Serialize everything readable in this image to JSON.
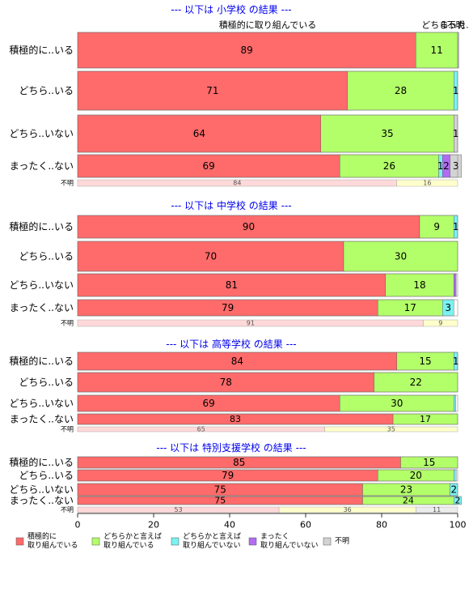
{
  "chart_data": {
    "type": "bar",
    "orientation": "horizontal",
    "stacked": true,
    "percent": true,
    "xlim": [
      0,
      100
    ],
    "xticks": [
      0,
      20,
      40,
      60,
      80,
      100
    ],
    "colors": [
      "#ff6a6a",
      "#b3ff6a",
      "#7af2f2",
      "#b26cf2",
      "#d3d3d3"
    ],
    "legend": {
      "placement": "bottom",
      "entries": [
        [
          "積極的に",
          "取り組んでいる"
        ],
        [
          "どちらかと言えば",
          "取り組んでいる"
        ],
        [
          "どちらかと言えば",
          "取り組んでいない"
        ],
        [
          "まったく",
          "取り組んでいない"
        ],
        [
          "不明"
        ]
      ]
    },
    "top_labels": [
      {
        "text": "積極的に取り組んでいる",
        "at": 0.5
      },
      {
        "text": "どちら...",
        "at": 0.95
      },
      {
        "text": "不明",
        "at": 0.995
      },
      {
        "text": "まった...",
        "at": 0.998
      }
    ],
    "panels": [
      {
        "title": "--- 以下は 小学校 の結果 ---",
        "rows": [
          {
            "label": "積極的に..いる",
            "values": [
              89,
              11,
              0,
              0,
              0.3
            ],
            "labels": [
              "89",
              "11",
              "",
              "",
              ""
            ]
          },
          {
            "label": "どちら..いる",
            "values": [
              71,
              28,
              1,
              0,
              0
            ],
            "labels": [
              "71",
              "28",
              "1",
              "",
              ""
            ]
          },
          {
            "label": "どちら..いない",
            "values": [
              64,
              35,
              0,
              0,
              1
            ],
            "labels": [
              "64",
              "35",
              "",
              "",
              "1"
            ]
          },
          {
            "label": "まったく..ない",
            "values": [
              69,
              26,
              1,
              2,
              3
            ],
            "labels": [
              "69",
              "26",
              "1",
              "2",
              "3"
            ]
          }
        ],
        "unknown": {
          "label": "不明",
          "values": [
            84,
            16
          ],
          "labels": [
            "84",
            "16"
          ]
        }
      },
      {
        "title": "--- 以下は 中学校 の結果 ---",
        "rows": [
          {
            "label": "積極的に..いる",
            "values": [
              90,
              9,
              1,
              0,
              0
            ],
            "labels": [
              "90",
              "9",
              "1",
              "",
              ""
            ]
          },
          {
            "label": "どちら..いる",
            "values": [
              70,
              30,
              0,
              0,
              0
            ],
            "labels": [
              "70",
              "30",
              "",
              "",
              ""
            ]
          },
          {
            "label": "どちら..いない",
            "values": [
              81,
              18,
              0,
              0.6,
              0
            ],
            "labels": [
              "81",
              "18",
              "",
              "",
              ""
            ]
          },
          {
            "label": "まったく..ない",
            "values": [
              79,
              17,
              3,
              0,
              0
            ],
            "labels": [
              "79",
              "17",
              "3",
              "",
              ""
            ]
          }
        ],
        "unknown": {
          "label": "不明",
          "values": [
            91,
            9
          ],
          "labels": [
            "91",
            "9"
          ]
        }
      },
      {
        "title": "--- 以下は 高等学校 の結果 ---",
        "rows": [
          {
            "label": "積極的に..いる",
            "values": [
              84,
              15,
              1,
              0,
              0
            ],
            "labels": [
              "84",
              "15",
              "1",
              "",
              ""
            ]
          },
          {
            "label": "どちら..いる",
            "values": [
              78,
              22,
              0,
              0,
              0
            ],
            "labels": [
              "78",
              "22",
              "",
              "",
              ""
            ]
          },
          {
            "label": "どちら..いない",
            "values": [
              69,
              30,
              0.5,
              0,
              0
            ],
            "labels": [
              "69",
              "30",
              "",
              "",
              ""
            ]
          },
          {
            "label": "まったく..ない",
            "values": [
              83,
              17,
              0,
              0,
              0
            ],
            "labels": [
              "83",
              "17",
              "",
              "",
              ""
            ]
          }
        ],
        "unknown": {
          "label": "不明",
          "values": [
            65,
            35
          ],
          "labels": [
            "65",
            "35"
          ]
        }
      },
      {
        "title": "--- 以下は 特別支援学校 の結果 ---",
        "rows": [
          {
            "label": "積極的に..いる",
            "values": [
              85,
              15,
              0,
              0,
              0
            ],
            "labels": [
              "85",
              "15",
              "",
              "",
              ""
            ]
          },
          {
            "label": "どちら..いる",
            "values": [
              79,
              20,
              0.6,
              0,
              0
            ],
            "labels": [
              "79",
              "20",
              "",
              "",
              ""
            ]
          },
          {
            "label": "どちら..いない",
            "values": [
              75,
              23,
              2,
              0,
              0
            ],
            "labels": [
              "75",
              "23",
              "2",
              "",
              ""
            ]
          },
          {
            "label": "まったく..ない",
            "values": [
              75,
              24,
              2,
              0,
              0
            ],
            "labels": [
              "75",
              "24",
              "2",
              "",
              ""
            ]
          }
        ],
        "unknown": {
          "label": "不明",
          "values": [
            53,
            36,
            11
          ],
          "labels": [
            "53",
            "36",
            "11"
          ]
        }
      }
    ]
  }
}
